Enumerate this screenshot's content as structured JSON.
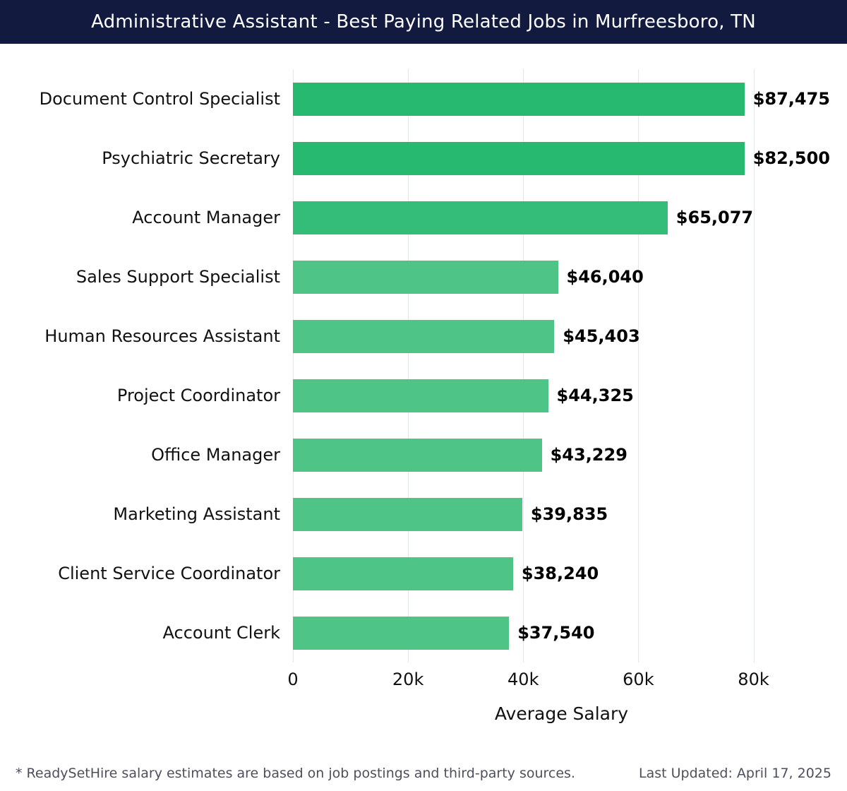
{
  "header": {
    "title": "Administrative Assistant - Best Paying Related Jobs in Murfreesboro, TN",
    "bg_color": "#131a40",
    "text_color": "#ffffff"
  },
  "chart_data": {
    "type": "bar",
    "orientation": "horizontal",
    "title": "Administrative Assistant - Best Paying Related Jobs in Murfreesboro, TN",
    "categories": [
      "Document Control Specialist",
      "Psychiatric Secretary",
      "Account Manager",
      "Sales Support Specialist",
      "Human Resources Assistant",
      "Project Coordinator",
      "Office Manager",
      "Marketing Assistant",
      "Client Service Coordinator",
      "Account Clerk"
    ],
    "values": [
      87475,
      82500,
      65077,
      46040,
      45403,
      44325,
      43229,
      39835,
      38240,
      37540
    ],
    "value_labels": [
      "$87,475",
      "$82,500",
      "$65,077",
      "$46,040",
      "$45,403",
      "$44,325",
      "$43,229",
      "$39,835",
      "$38,240",
      "$37,540"
    ],
    "bar_colors": [
      "#26b96f",
      "#26b96f",
      "#33bd78",
      "#4ec487",
      "#4ec487",
      "#4ec487",
      "#4ec487",
      "#4ec487",
      "#4ec487",
      "#4ec487"
    ],
    "xlabel": "Average Salary",
    "x_ticks": [
      {
        "value": 0,
        "label": "0"
      },
      {
        "value": 20000,
        "label": "20k"
      },
      {
        "value": 40000,
        "label": "40k"
      },
      {
        "value": 60000,
        "label": "60k"
      },
      {
        "value": 80000,
        "label": "80k"
      }
    ],
    "axis_max": 93300,
    "xlim": [
      0,
      93300
    ],
    "grid": true,
    "legend": "none",
    "background": "#ffffff"
  },
  "footer": {
    "note": "* ReadySetHire salary estimates are based on job postings and third-party sources.",
    "updated": "Last Updated: April 17, 2025"
  }
}
